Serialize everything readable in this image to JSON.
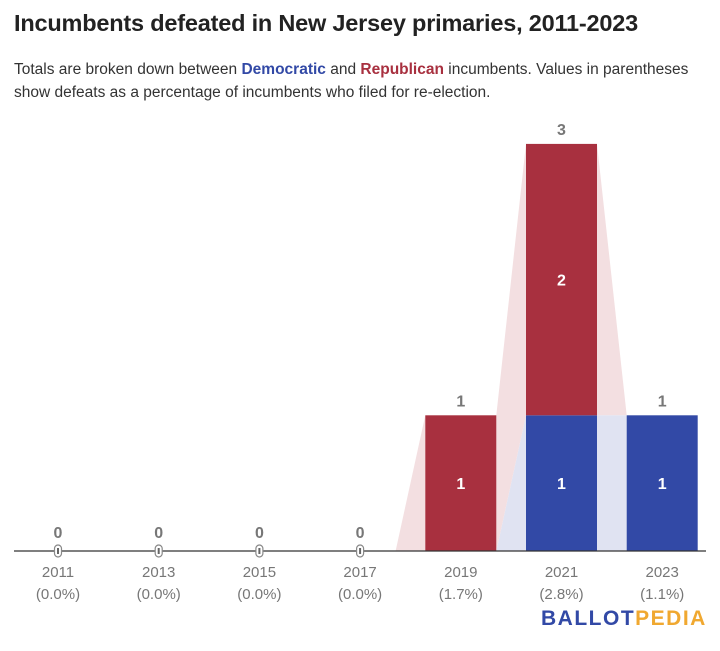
{
  "title": "Incumbents defeated in New Jersey primaries, 2011-2023",
  "subtitle": {
    "part1": "Totals are broken down between ",
    "dem": "Democratic",
    "part2": " and ",
    "rep": "Republican",
    "part3": " incumbents. Values in parentheses show defeats as a percentage of incumbents who filed for re-election."
  },
  "logo": {
    "part1": "BALLOT",
    "part2": "PEDIA"
  },
  "chart_data": {
    "type": "bar",
    "stacked": true,
    "categories": [
      "2011",
      "2013",
      "2015",
      "2017",
      "2019",
      "2021",
      "2023"
    ],
    "category_sublabels": [
      "(0.0%)",
      "(0.0%)",
      "(0.0%)",
      "(0.0%)",
      "(1.7%)",
      "(2.8%)",
      "(1.1%)"
    ],
    "series": [
      {
        "name": "Democratic",
        "values": [
          0,
          0,
          0,
          0,
          0,
          1,
          1
        ],
        "color": "#3249a6",
        "tint": "#e0e3f2"
      },
      {
        "name": "Republican",
        "values": [
          0,
          0,
          0,
          0,
          1,
          2,
          0
        ],
        "color": "#a8303f",
        "tint": "#f3dfe1"
      }
    ],
    "totals": [
      0,
      0,
      0,
      0,
      1,
      3,
      1
    ],
    "ylim": [
      0,
      3
    ],
    "grid": false,
    "legend": "none"
  }
}
